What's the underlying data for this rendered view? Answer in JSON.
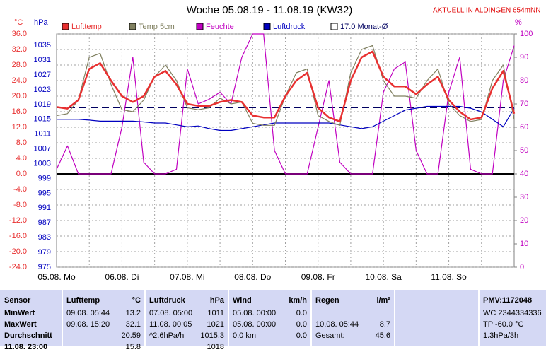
{
  "chart_data": {
    "type": "line",
    "title": "Woche 05.08.19 - 11.08.19 (KW32)",
    "subtitle": "AKTUELL IN ALDINGEN 654mNN",
    "y_label": "°C",
    "y2_label": "%",
    "y3_label": "hPa",
    "categories": [
      "05.08.  Mo",
      null,
      null,
      null,
      null,
      null,
      "06.08.  Di",
      null,
      null,
      null,
      null,
      null,
      "07.08.  Mi",
      null,
      null,
      null,
      null,
      null,
      "08.08.  Do",
      null,
      null,
      null,
      null,
      null,
      "09.08.  Fr",
      null,
      null,
      null,
      null,
      null,
      "10.08.  Sa",
      null,
      null,
      null,
      null,
      null,
      "11.08.  So",
      null,
      null,
      null,
      null,
      null,
      null
    ],
    "series": [
      {
        "name": "Lufttemp",
        "color": "#e83030",
        "values": [
          17.2,
          16.8,
          19,
          27,
          28.5,
          24,
          20,
          18.5,
          20,
          25,
          26.5,
          23,
          18,
          17.5,
          17.5,
          18.5,
          19,
          18.5,
          15,
          14.5,
          14.5,
          20,
          24,
          26,
          17,
          14.5,
          13.5,
          24,
          30,
          31.5,
          25,
          22.5,
          22.5,
          20.5,
          23,
          25,
          19,
          16,
          14,
          14.5,
          22,
          26.5,
          15.5
        ]
      },
      {
        "name": "Temp 5cm",
        "color": "#808060",
        "values": [
          15,
          15.5,
          19,
          30,
          31,
          23,
          16.5,
          16,
          19,
          25,
          28,
          24,
          17,
          16.5,
          17,
          19.5,
          18,
          18.5,
          13,
          12.5,
          12.5,
          20,
          26,
          27,
          15,
          13.5,
          12.5,
          26,
          32,
          33,
          24,
          20,
          20,
          19.5,
          24,
          27,
          18,
          15,
          13.5,
          14,
          24,
          28,
          14
        ]
      },
      {
        "name": "Feuchte",
        "color": "#c000c0",
        "axis": "y2",
        "values": [
          42,
          52,
          40,
          40,
          40,
          40,
          60,
          90,
          45,
          40,
          40,
          42,
          85,
          70,
          72,
          75,
          70,
          90,
          100,
          100,
          50,
          40,
          40,
          40,
          60,
          80,
          45,
          40,
          40,
          40,
          75,
          85,
          88,
          50,
          40,
          40,
          75,
          90,
          42,
          40,
          40,
          80,
          95
        ]
      },
      {
        "name": "Luftdruck",
        "color": "#0000c0",
        "axis": "y3",
        "values": [
          1015,
          1015,
          1015,
          1014.8,
          1014.5,
          1014.5,
          1014.5,
          1014.5,
          1014.3,
          1014,
          1014,
          1013.5,
          1013,
          1013.2,
          1012.5,
          1012,
          1012,
          1012.5,
          1013,
          1013.5,
          1014,
          1014,
          1014,
          1014,
          1014,
          1014,
          1013.5,
          1013,
          1012.5,
          1013,
          1014.5,
          1016,
          1017.5,
          1018,
          1018.5,
          1018.5,
          1018.5,
          1018.5,
          1018,
          1017,
          1015,
          1013,
          1018
        ]
      }
    ],
    "monthly_avg": {
      "name": "17.0 Monat-Ø",
      "value": 17.0,
      "color": "#000060"
    },
    "ylim": [
      -24,
      36
    ],
    "yticks": [
      {
        "value": 36,
        "label": "36.0"
      },
      {
        "value": 32,
        "label": "32.0"
      },
      {
        "value": 28,
        "label": "28.0"
      },
      {
        "value": 24,
        "label": "24.0"
      },
      {
        "value": 20,
        "label": "20.0"
      },
      {
        "value": 16,
        "label": "16.0"
      },
      {
        "value": 12,
        "label": "12.0"
      },
      {
        "value": 8,
        "label": "8.0"
      },
      {
        "value": 4,
        "label": "4.0"
      },
      {
        "value": 0,
        "label": "0.0"
      },
      {
        "value": -4,
        "label": "-4.0"
      },
      {
        "value": -8,
        "label": "-8.0"
      },
      {
        "value": -12,
        "label": "-12.0"
      },
      {
        "value": -16,
        "label": "-16.0"
      },
      {
        "value": -20,
        "label": "-20.0"
      },
      {
        "value": -24,
        "label": "-24.0"
      }
    ],
    "y2lim": [
      0,
      100
    ],
    "y2ticks": [
      0,
      10,
      20,
      30,
      40,
      50,
      60,
      70,
      80,
      90,
      100
    ],
    "y3lim": [
      975,
      1038.1
    ],
    "y3ticks": [
      1035,
      1031,
      1027,
      1023,
      1019,
      1015,
      1011,
      1007,
      1003,
      999,
      995,
      991,
      987,
      983,
      979,
      975
    ],
    "grid": true
  },
  "table": {
    "columns": [
      [
        "Sensor"
      ],
      [
        "Lufttemp",
        "°C"
      ],
      [
        "Luftdruck",
        "hPa"
      ],
      [
        "Wind",
        "km/h"
      ],
      [
        "Regen",
        "l/m²"
      ],
      null,
      [
        "PMV:1172048"
      ]
    ],
    "rows": [
      {
        "label": "MinWert",
        "cells": [
          [
            "09.08. 05:44",
            "13.2"
          ],
          [
            "07.08. 05:00",
            "1011"
          ],
          [
            "05.08. 00:00",
            "0.0"
          ],
          null,
          null,
          [
            "WC 2344334336"
          ]
        ]
      },
      {
        "label": "MaxWert",
        "cells": [
          [
            "09.08. 15:20",
            "32.1"
          ],
          [
            "11.08. 00:05",
            "1021"
          ],
          [
            "05.08. 00:00",
            "0.0"
          ],
          [
            "10.08. 05:44",
            "8.7"
          ],
          null,
          [
            "TP -60.0 °C"
          ]
        ]
      },
      {
        "label": "Durchschnitt",
        "cells": [
          [
            null,
            "20.59"
          ],
          [
            "^2.6hPa/h",
            "1015.3"
          ],
          [
            "0.0 km",
            "0.0"
          ],
          [
            "Gesamt:",
            "45.6"
          ],
          null,
          [
            "1.3hPa/3h"
          ]
        ]
      },
      {
        "label": "11.08. 23:00",
        "cells": [
          [
            null,
            "15.8"
          ],
          [
            null,
            "1018"
          ],
          null,
          null,
          null,
          null
        ]
      }
    ]
  }
}
